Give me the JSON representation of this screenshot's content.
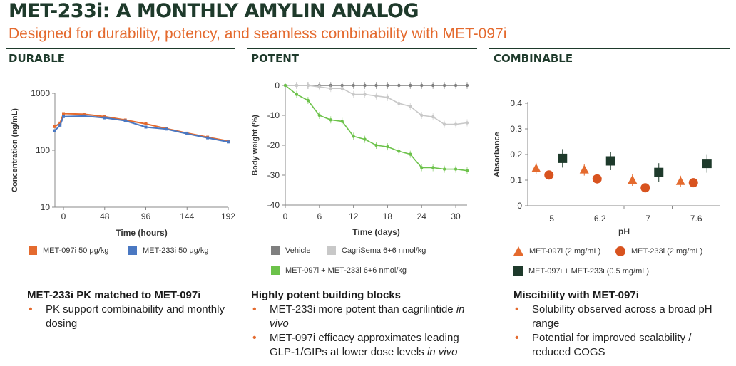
{
  "header": {
    "title": "MET-233i: A MONTHLY AMYLIN ANALOG",
    "subtitle": "Designed for durability, potency, and seamless combinability with MET-097i"
  },
  "colors": {
    "dark_green": "#1e3a2b",
    "orange": "#e46a2e",
    "blue": "#4a78c2",
    "gray": "#7f7f7f",
    "light_gray": "#c8c8c8",
    "green": "#6cc24a"
  },
  "panels": {
    "durable": {
      "heading": "DURABLE",
      "note_title": "MET-233i PK matched to MET-097i",
      "bullets": [
        "PK support combinability and monthly dosing"
      ]
    },
    "potent": {
      "heading": "POTENT",
      "note_title": "Highly potent building blocks",
      "bullets": [
        [
          "MET-233i more potent than cagrilintide ",
          "in vivo"
        ],
        [
          "MET-097i efficacy approximates leading GLP-1/GIPs at lower dose levels ",
          "in vivo"
        ]
      ]
    },
    "combinable": {
      "heading": "COMBINABLE",
      "note_title": "Miscibility with MET-097i",
      "bullets": [
        "Solubility observed across a broad pH range",
        "Potential for improved scalability / reduced COGS"
      ]
    }
  },
  "chart_data": [
    {
      "type": "line",
      "xlabel": "Time (hours)",
      "ylabel": "Concentration (ng/mL)",
      "yscale": "log",
      "xlim": [
        -10,
        192
      ],
      "ylim": [
        10,
        1000
      ],
      "xticks": [
        0,
        48,
        96,
        144,
        192
      ],
      "yticks": [
        10,
        100,
        1000
      ],
      "series": [
        {
          "name": "MET-097i 50 μg/kg",
          "color": "#e46a2e",
          "x": [
            -10,
            -4,
            0,
            24,
            48,
            72,
            96,
            120,
            144,
            168,
            192
          ],
          "y": [
            260,
            300,
            440,
            430,
            390,
            340,
            290,
            240,
            200,
            170,
            145
          ]
        },
        {
          "name": "MET-233i 50 μg/kg",
          "color": "#4a78c2",
          "x": [
            -10,
            -4,
            0,
            24,
            48,
            72,
            96,
            120,
            144,
            168,
            192
          ],
          "y": [
            220,
            275,
            390,
            400,
            370,
            330,
            255,
            235,
            195,
            165,
            140
          ]
        }
      ]
    },
    {
      "type": "line",
      "xlabel": "Time (days)",
      "ylabel": "Body weight (%)",
      "xlim": [
        0,
        32
      ],
      "ylim": [
        -40,
        0
      ],
      "xticks": [
        0,
        6,
        12,
        18,
        24,
        30
      ],
      "yticks": [
        0,
        -10,
        -20,
        -30,
        -40
      ],
      "series": [
        {
          "name": "Vehicle",
          "color": "#7f7f7f",
          "x": [
            0,
            2,
            4,
            6,
            8,
            10,
            12,
            14,
            16,
            18,
            20,
            22,
            24,
            26,
            28,
            30,
            32
          ],
          "y": [
            0,
            0,
            0,
            0,
            0,
            0,
            0,
            0,
            0,
            0,
            0,
            0,
            0,
            0,
            0,
            0,
            0
          ]
        },
        {
          "name": "CagriSema 6+6 nmol/kg",
          "color": "#c8c8c8",
          "x": [
            0,
            2,
            4,
            6,
            8,
            10,
            12,
            14,
            16,
            18,
            20,
            22,
            24,
            26,
            28,
            30,
            32
          ],
          "y": [
            0,
            0,
            0,
            -0.5,
            -1,
            -1,
            -3,
            -3,
            -3.5,
            -4,
            -6,
            -7,
            -10,
            -10.5,
            -13,
            -13,
            -12.5
          ]
        },
        {
          "name": "MET-097i + MET-233i 6+6 nmol/kg",
          "color": "#6cc24a",
          "x": [
            0,
            2,
            4,
            6,
            8,
            10,
            12,
            14,
            16,
            18,
            20,
            22,
            24,
            26,
            28,
            30,
            32
          ],
          "y": [
            0,
            -3,
            -5,
            -10,
            -11.5,
            -12,
            -17,
            -18,
            -20,
            -20.5,
            -22,
            -23,
            -27.5,
            -27.5,
            -28,
            -28,
            -28.5
          ]
        }
      ]
    },
    {
      "type": "scatter",
      "xlabel": "pH",
      "ylabel": "Absorbance",
      "categories": [
        "5",
        "6.2",
        "7",
        "7.6"
      ],
      "ylim": [
        0,
        0.4
      ],
      "yticks": [
        0,
        0.1,
        0.2,
        0.3,
        0.4
      ],
      "series": [
        {
          "name": "MET-097i (2 mg/mL)",
          "marker": "triangle",
          "color": "#e46a2e",
          "values": [
            0.145,
            0.14,
            0.1,
            0.095
          ]
        },
        {
          "name": "MET-233i (2 mg/mL)",
          "marker": "circle",
          "color": "#d8531f",
          "values": [
            0.12,
            0.105,
            0.07,
            0.09
          ]
        },
        {
          "name": "MET-097i + MET-233i (0.5 mg/mL)",
          "marker": "square",
          "color": "#1e3a2b",
          "values": [
            0.185,
            0.175,
            0.13,
            0.165
          ]
        }
      ]
    }
  ]
}
